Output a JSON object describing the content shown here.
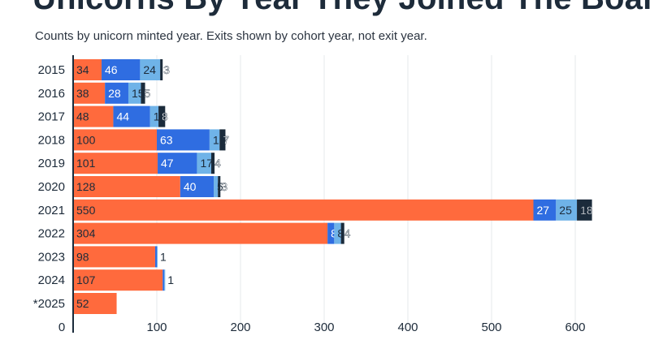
{
  "title": "Unicorns By Year They Joined The Board",
  "subtitle": "Counts by unicorn minted year. Exits shown by cohort year, not exit year.",
  "colors": {
    "series": [
      "#ff6a3d",
      "#2f6de1",
      "#6fb3e8",
      "#1b2b3b"
    ],
    "grid": "#e6e8eb",
    "axis": "#1b2b3b",
    "text": "#1d2b3a"
  },
  "chart_data": {
    "type": "bar",
    "orientation": "horizontal",
    "stacked": true,
    "categories": [
      "2015",
      "2016",
      "2017",
      "2018",
      "2019",
      "2020",
      "2021",
      "2022",
      "2023",
      "2024",
      "*2025"
    ],
    "series": [
      {
        "values": [
          34,
          38,
          48,
          100,
          101,
          128,
          550,
          304,
          98,
          107,
          52
        ]
      },
      {
        "values": [
          46,
          28,
          44,
          63,
          47,
          40,
          27,
          8,
          2,
          2,
          0
        ]
      },
      {
        "values": [
          24,
          15,
          10,
          12,
          17,
          5,
          25,
          8,
          1,
          1,
          0
        ]
      },
      {
        "values": [
          3,
          5,
          8,
          7,
          4,
          3,
          18,
          4,
          0,
          0,
          0
        ]
      }
    ],
    "xlim": [
      0,
      600
    ],
    "xticks": [
      0,
      100,
      200,
      300,
      400,
      500,
      600
    ],
    "grid": true,
    "legend": "none"
  }
}
